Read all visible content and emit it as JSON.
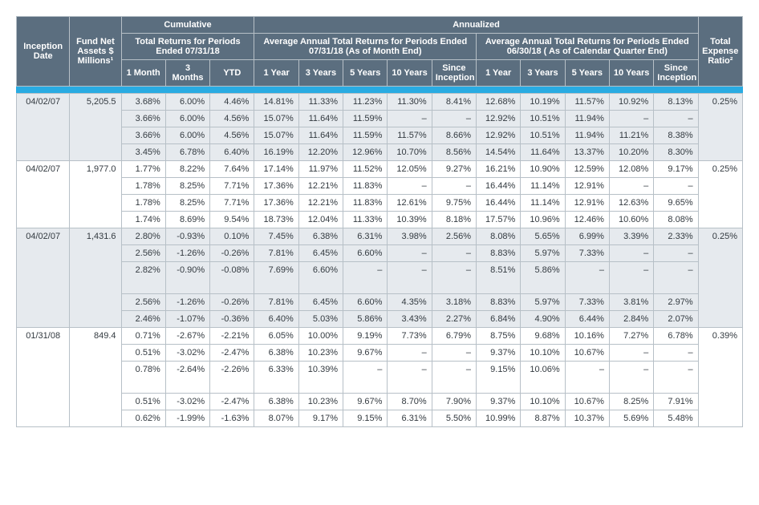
{
  "header": {
    "inception": "Inception Date",
    "assets": "Fund Net Assets $ Millions¹",
    "cumulative": "Cumulative",
    "annualized": "Annualized",
    "cum_sub": "Total Returns for Periods Ended 07/31/18",
    "ann_sub1": "Average Annual Total Returns for Periods Ended 07/31/18 (As of Month End)",
    "ann_sub2": "Average Annual Total Returns for Periods Ended 06/30/18 ( As of Calendar Quarter End)",
    "expense": "Total Expense Ratio²",
    "cols": {
      "m1": "1 Month",
      "m3": "3 Months",
      "ytd": "YTD",
      "y1": "1 Year",
      "y3": "3 Years",
      "y5": "5 Years",
      "y10": "10 Years",
      "si": "Since Inception"
    }
  },
  "groups": [
    {
      "shade": true,
      "inception": "04/02/07",
      "assets": "5,205.5",
      "expense": "0.25%",
      "rows": [
        {
          "m1": "3.68%",
          "m3": "6.00%",
          "ytd": "4.46%",
          "a1": "14.81%",
          "a3": "11.33%",
          "a5": "11.23%",
          "a10": "11.30%",
          "asi": "8.41%",
          "b1": "12.68%",
          "b3": "10.19%",
          "b5": "11.57%",
          "b10": "10.92%",
          "bsi": "8.13%"
        },
        {
          "m1": "3.66%",
          "m3": "6.00%",
          "ytd": "4.56%",
          "a1": "15.07%",
          "a3": "11.64%",
          "a5": "11.59%",
          "a10": "–",
          "asi": "–",
          "b1": "12.92%",
          "b3": "10.51%",
          "b5": "11.94%",
          "b10": "–",
          "bsi": "–"
        },
        {
          "m1": "3.66%",
          "m3": "6.00%",
          "ytd": "4.56%",
          "a1": "15.07%",
          "a3": "11.64%",
          "a5": "11.59%",
          "a10": "11.57%",
          "asi": "8.66%",
          "b1": "12.92%",
          "b3": "10.51%",
          "b5": "11.94%",
          "b10": "11.21%",
          "bsi": "8.38%"
        },
        {
          "m1": "3.45%",
          "m3": "6.78%",
          "ytd": "6.40%",
          "a1": "16.19%",
          "a3": "12.20%",
          "a5": "12.96%",
          "a10": "10.70%",
          "asi": "8.56%",
          "b1": "14.54%",
          "b3": "11.64%",
          "b5": "13.37%",
          "b10": "10.20%",
          "bsi": "8.30%"
        }
      ]
    },
    {
      "shade": false,
      "inception": "04/02/07",
      "assets": "1,977.0",
      "expense": "0.25%",
      "rows": [
        {
          "m1": "1.77%",
          "m3": "8.22%",
          "ytd": "7.64%",
          "a1": "17.14%",
          "a3": "11.97%",
          "a5": "11.52%",
          "a10": "12.05%",
          "asi": "9.27%",
          "b1": "16.21%",
          "b3": "10.90%",
          "b5": "12.59%",
          "b10": "12.08%",
          "bsi": "9.17%"
        },
        {
          "m1": "1.78%",
          "m3": "8.25%",
          "ytd": "7.71%",
          "a1": "17.36%",
          "a3": "12.21%",
          "a5": "11.83%",
          "a10": "–",
          "asi": "–",
          "b1": "16.44%",
          "b3": "11.14%",
          "b5": "12.91%",
          "b10": "–",
          "bsi": "–"
        },
        {
          "m1": "1.78%",
          "m3": "8.25%",
          "ytd": "7.71%",
          "a1": "17.36%",
          "a3": "12.21%",
          "a5": "11.83%",
          "a10": "12.61%",
          "asi": "9.75%",
          "b1": "16.44%",
          "b3": "11.14%",
          "b5": "12.91%",
          "b10": "12.63%",
          "bsi": "9.65%"
        },
        {
          "m1": "1.74%",
          "m3": "8.69%",
          "ytd": "9.54%",
          "a1": "18.73%",
          "a3": "12.04%",
          "a5": "11.33%",
          "a10": "10.39%",
          "asi": "8.18%",
          "b1": "17.57%",
          "b3": "10.96%",
          "b5": "12.46%",
          "b10": "10.60%",
          "bsi": "8.08%"
        }
      ]
    },
    {
      "shade": true,
      "inception": "04/02/07",
      "assets": "1,431.6",
      "expense": "0.25%",
      "rows": [
        {
          "m1": "2.80%",
          "m3": "-0.93%",
          "ytd": "0.10%",
          "a1": "7.45%",
          "a3": "6.38%",
          "a5": "6.31%",
          "a10": "3.98%",
          "asi": "2.56%",
          "b1": "8.08%",
          "b3": "5.65%",
          "b5": "6.99%",
          "b10": "3.39%",
          "bsi": "2.33%"
        },
        {
          "m1": "2.56%",
          "m3": "-1.26%",
          "ytd": "-0.26%",
          "a1": "7.81%",
          "a3": "6.45%",
          "a5": "6.60%",
          "a10": "–",
          "asi": "–",
          "b1": "8.83%",
          "b3": "5.97%",
          "b5": "7.33%",
          "b10": "–",
          "bsi": "–"
        },
        {
          "m1": "2.82%",
          "m3": "-0.90%",
          "ytd": "-0.08%",
          "a1": "7.69%",
          "a3": "6.60%",
          "a5": "–",
          "a10": "–",
          "asi": "–",
          "b1": "8.51%",
          "b3": "5.86%",
          "b5": "–",
          "b10": "–",
          "bsi": "–",
          "gap": true
        },
        {
          "m1": "2.56%",
          "m3": "-1.26%",
          "ytd": "-0.26%",
          "a1": "7.81%",
          "a3": "6.45%",
          "a5": "6.60%",
          "a10": "4.35%",
          "asi": "3.18%",
          "b1": "8.83%",
          "b3": "5.97%",
          "b5": "7.33%",
          "b10": "3.81%",
          "bsi": "2.97%"
        },
        {
          "m1": "2.46%",
          "m3": "-1.07%",
          "ytd": "-0.36%",
          "a1": "6.40%",
          "a3": "5.03%",
          "a5": "5.86%",
          "a10": "3.43%",
          "asi": "2.27%",
          "b1": "6.84%",
          "b3": "4.90%",
          "b5": "6.44%",
          "b10": "2.84%",
          "bsi": "2.07%"
        }
      ]
    },
    {
      "shade": false,
      "inception": "01/31/08",
      "assets": "849.4",
      "expense": "0.39%",
      "rows": [
        {
          "m1": "0.71%",
          "m3": "-2.67%",
          "ytd": "-2.21%",
          "a1": "6.05%",
          "a3": "10.00%",
          "a5": "9.19%",
          "a10": "7.73%",
          "asi": "6.79%",
          "b1": "8.75%",
          "b3": "9.68%",
          "b5": "10.16%",
          "b10": "7.27%",
          "bsi": "6.78%"
        },
        {
          "m1": "0.51%",
          "m3": "-3.02%",
          "ytd": "-2.47%",
          "a1": "6.38%",
          "a3": "10.23%",
          "a5": "9.67%",
          "a10": "–",
          "asi": "–",
          "b1": "9.37%",
          "b3": "10.10%",
          "b5": "10.67%",
          "b10": "–",
          "bsi": "–"
        },
        {
          "m1": "0.78%",
          "m3": "-2.64%",
          "ytd": "-2.26%",
          "a1": "6.33%",
          "a3": "10.39%",
          "a5": "–",
          "a10": "–",
          "asi": "–",
          "b1": "9.15%",
          "b3": "10.06%",
          "b5": "–",
          "b10": "–",
          "bsi": "–",
          "gap": true
        },
        {
          "m1": "0.51%",
          "m3": "-3.02%",
          "ytd": "-2.47%",
          "a1": "6.38%",
          "a3": "10.23%",
          "a5": "9.67%",
          "a10": "8.70%",
          "asi": "7.90%",
          "b1": "9.37%",
          "b3": "10.10%",
          "b5": "10.67%",
          "b10": "8.25%",
          "bsi": "7.91%"
        },
        {
          "m1": "0.62%",
          "m3": "-1.99%",
          "ytd": "-1.63%",
          "a1": "8.07%",
          "a3": "9.17%",
          "a5": "9.15%",
          "a10": "6.31%",
          "asi": "5.50%",
          "b1": "10.99%",
          "b3": "8.87%",
          "b5": "10.37%",
          "b10": "5.69%",
          "bsi": "5.48%"
        }
      ]
    }
  ]
}
